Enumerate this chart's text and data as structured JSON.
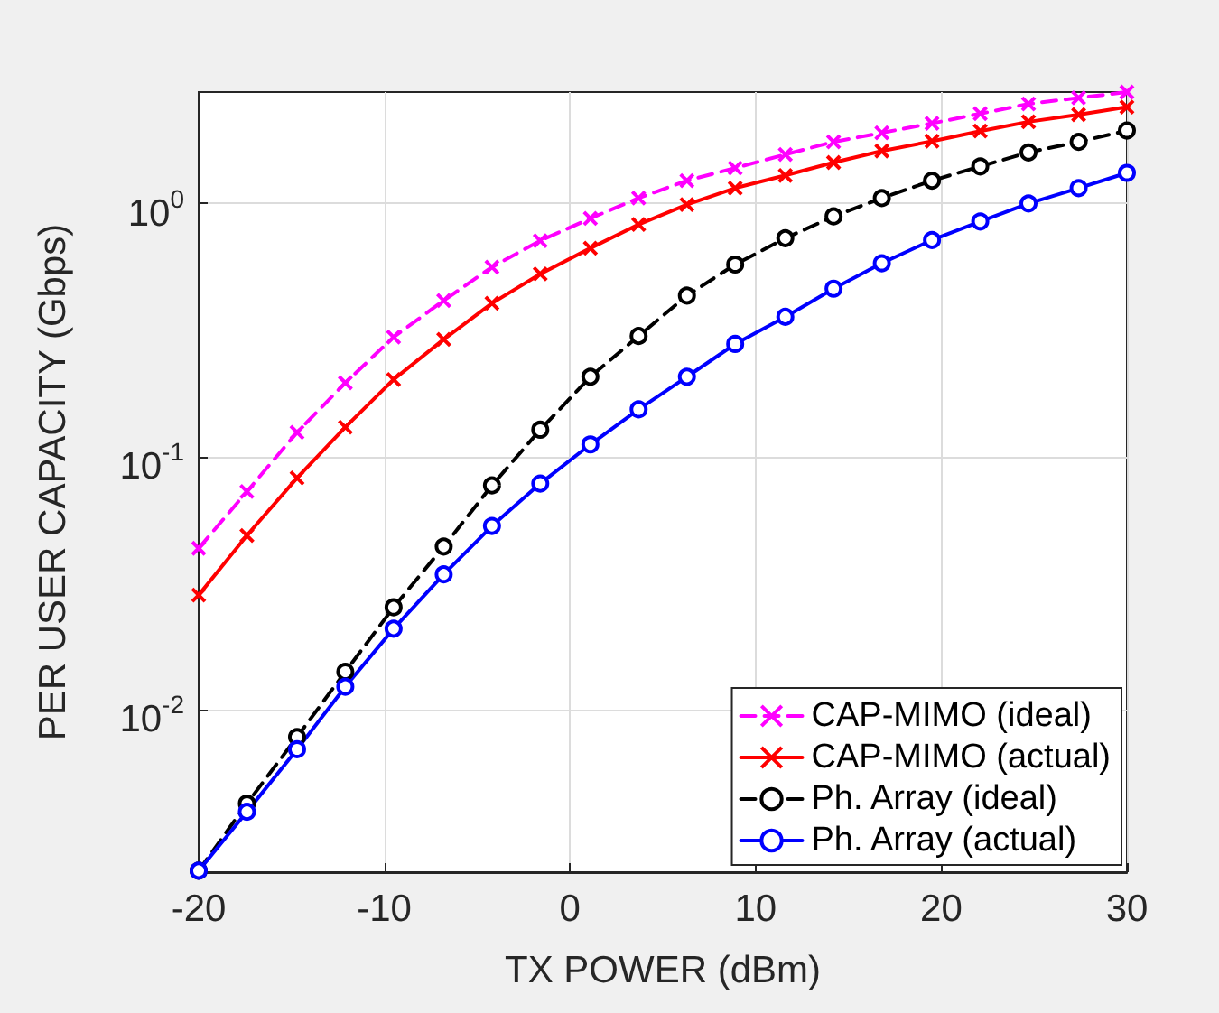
{
  "chart_data": {
    "type": "line",
    "xlabel": "TX POWER (dBm)",
    "ylabel": "PER USER CAPACITY (Gbps)",
    "x": [
      -20,
      -17.4,
      -14.7,
      -12.1,
      -9.5,
      -6.8,
      -4.2,
      -1.6,
      1.1,
      3.7,
      6.3,
      8.9,
      11.6,
      14.2,
      16.8,
      19.5,
      22.1,
      24.7,
      27.4,
      30
    ],
    "series": [
      {
        "name": "CAP-MIMO (ideal)",
        "color": "#ff00ff",
        "marker": "cross",
        "line_style": "dashed",
        "values": [
          0.0436,
          0.073,
          0.125,
          0.196,
          0.297,
          0.414,
          0.561,
          0.713,
          0.873,
          1.05,
          1.23,
          1.38,
          1.56,
          1.75,
          1.9,
          2.07,
          2.26,
          2.47,
          2.61,
          2.75
        ]
      },
      {
        "name": "CAP-MIMO (actual)",
        "color": "#ff0000",
        "marker": "cross",
        "line_style": "solid",
        "values": [
          0.0285,
          0.049,
          0.0826,
          0.131,
          0.202,
          0.291,
          0.404,
          0.527,
          0.666,
          0.826,
          0.99,
          1.15,
          1.29,
          1.45,
          1.61,
          1.76,
          1.93,
          2.1,
          2.24,
          2.4
        ]
      },
      {
        "name": "Ph. Array (ideal)",
        "color": "#000000",
        "marker": "circle",
        "line_style": "dashed",
        "values": [
          0.00233,
          0.00429,
          0.00785,
          0.0142,
          0.0255,
          0.0443,
          0.0772,
          0.128,
          0.207,
          0.3,
          0.433,
          0.574,
          0.729,
          0.889,
          1.05,
          1.23,
          1.4,
          1.59,
          1.75,
          1.94
        ]
      },
      {
        "name": "Ph. Array (actual)",
        "color": "#0000ff",
        "marker": "circle",
        "line_style": "solid",
        "values": [
          0.00233,
          0.00398,
          0.00702,
          0.0124,
          0.021,
          0.0344,
          0.0534,
          0.0785,
          0.112,
          0.154,
          0.207,
          0.279,
          0.357,
          0.461,
          0.581,
          0.717,
          0.849,
          1.0,
          1.15,
          1.32
        ]
      }
    ],
    "log": "y",
    "xlim": [
      -20,
      30
    ],
    "xticks": [
      -20,
      -10,
      0,
      10,
      20,
      30
    ],
    "ylim": [
      0.0023,
      2.75
    ],
    "yticks": [
      {
        "value": 0.01,
        "label": "10$^{-2}$"
      },
      {
        "value": 0.1,
        "label": "10$^{-1}$"
      },
      {
        "value": 1,
        "label": "10$^{0}$"
      }
    ],
    "grid": true,
    "legend": "bottom right"
  }
}
